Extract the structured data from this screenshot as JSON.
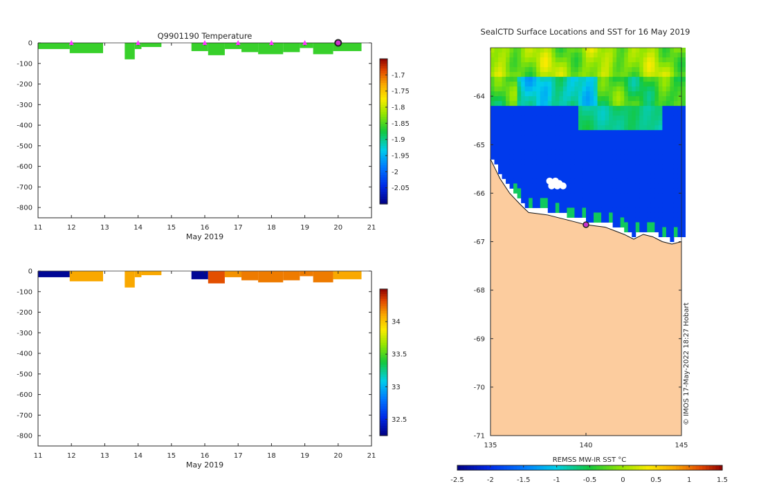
{
  "chart_data": [
    {
      "type": "heatmap",
      "title": "Q9901190  Temperature",
      "xlabel": "May 2019",
      "ylabel": "",
      "xlim": [
        11,
        21
      ],
      "ylim": [
        -850,
        0
      ],
      "x_ticks": [
        11,
        12,
        13,
        14,
        15,
        16,
        17,
        18,
        19,
        20,
        21
      ],
      "y_ticks": [
        0,
        -100,
        -200,
        -300,
        -400,
        -500,
        -600,
        -700,
        -800
      ],
      "colorbar": {
        "min": -2.1,
        "max": -1.65,
        "ticks": [
          -1.7,
          -1.75,
          -1.8,
          -1.85,
          -1.9,
          -1.95,
          -2,
          -2.05
        ]
      },
      "profiles": [
        {
          "start": 11.0,
          "end": 11.95,
          "depth": 30,
          "value": -1.86
        },
        {
          "start": 11.95,
          "end": 12.95,
          "depth": 50,
          "value": -1.86
        },
        {
          "start": 13.6,
          "end": 13.9,
          "depth": 80,
          "value": -1.86
        },
        {
          "start": 13.9,
          "end": 14.1,
          "depth": 30,
          "value": -1.86
        },
        {
          "start": 14.1,
          "end": 14.7,
          "depth": 20,
          "value": -1.86
        },
        {
          "start": 15.6,
          "end": 16.1,
          "depth": 40,
          "value": -1.86
        },
        {
          "start": 16.1,
          "end": 16.6,
          "depth": 60,
          "value": -1.86
        },
        {
          "start": 16.6,
          "end": 17.1,
          "depth": 30,
          "value": -1.86
        },
        {
          "start": 17.1,
          "end": 17.6,
          "depth": 45,
          "value": -1.86
        },
        {
          "start": 17.6,
          "end": 18.35,
          "depth": 55,
          "value": -1.86
        },
        {
          "start": 18.35,
          "end": 18.85,
          "depth": 45,
          "value": -1.86
        },
        {
          "start": 18.85,
          "end": 19.25,
          "depth": 25,
          "value": -1.86
        },
        {
          "start": 19.25,
          "end": 19.85,
          "depth": 55,
          "value": -1.86
        },
        {
          "start": 19.85,
          "end": 20.7,
          "depth": 40,
          "value": -1.86
        }
      ],
      "markers": [
        12,
        14,
        16,
        17,
        18,
        19
      ],
      "current_marker": 20
    },
    {
      "type": "heatmap",
      "title": "",
      "xlabel": "May 2019",
      "ylabel": "",
      "xlim": [
        11,
        21
      ],
      "ylim": [
        -850,
        0
      ],
      "x_ticks": [
        11,
        12,
        13,
        14,
        15,
        16,
        17,
        18,
        19,
        20,
        21
      ],
      "y_ticks": [
        0,
        -100,
        -200,
        -300,
        -400,
        -500,
        -600,
        -700,
        -800
      ],
      "colorbar": {
        "min": 32.25,
        "max": 34.5,
        "ticks": [
          34,
          33.5,
          33,
          32.5
        ]
      },
      "profiles": [
        {
          "start": 11.0,
          "end": 11.95,
          "depth": 30,
          "value": 32.3
        },
        {
          "start": 11.95,
          "end": 12.95,
          "depth": 50,
          "value": 34.1
        },
        {
          "start": 13.6,
          "end": 13.9,
          "depth": 80,
          "value": 34.1
        },
        {
          "start": 13.9,
          "end": 14.1,
          "depth": 30,
          "value": 34.1
        },
        {
          "start": 14.1,
          "end": 14.7,
          "depth": 20,
          "value": 34.1
        },
        {
          "start": 15.6,
          "end": 16.1,
          "depth": 40,
          "value": 32.3
        },
        {
          "start": 16.1,
          "end": 16.6,
          "depth": 60,
          "value": 34.3
        },
        {
          "start": 16.6,
          "end": 17.1,
          "depth": 30,
          "value": 34.15
        },
        {
          "start": 17.1,
          "end": 17.6,
          "depth": 45,
          "value": 34.2
        },
        {
          "start": 17.6,
          "end": 18.35,
          "depth": 55,
          "value": 34.2
        },
        {
          "start": 18.35,
          "end": 18.85,
          "depth": 45,
          "value": 34.2
        },
        {
          "start": 18.85,
          "end": 19.25,
          "depth": 25,
          "value": 34.2
        },
        {
          "start": 19.25,
          "end": 19.85,
          "depth": 55,
          "value": 34.2
        },
        {
          "start": 19.85,
          "end": 20.7,
          "depth": 40,
          "value": 34.1
        }
      ]
    },
    {
      "type": "heatmap",
      "title": "SealCTD Surface Locations and SST for 16 May 2019",
      "xlabel": "",
      "ylabel": "",
      "xlim": [
        135,
        145
      ],
      "ylim": [
        -71,
        -63
      ],
      "x_ticks": [
        135,
        140,
        145
      ],
      "y_ticks": [
        -64,
        -65,
        -66,
        -67,
        -68,
        -69,
        -70,
        -71
      ],
      "colorbar": {
        "label": "REMSS MW-IR SST °C",
        "min": -2.5,
        "max": 1.5,
        "ticks": [
          -2.5,
          -2,
          -1.5,
          -1,
          -0.5,
          0,
          0.5,
          1,
          1.5
        ]
      },
      "location": {
        "lon": 140,
        "lat": -66.65
      },
      "watermark": "© IMOS 17-May-2022 18:27 Hobart"
    }
  ]
}
